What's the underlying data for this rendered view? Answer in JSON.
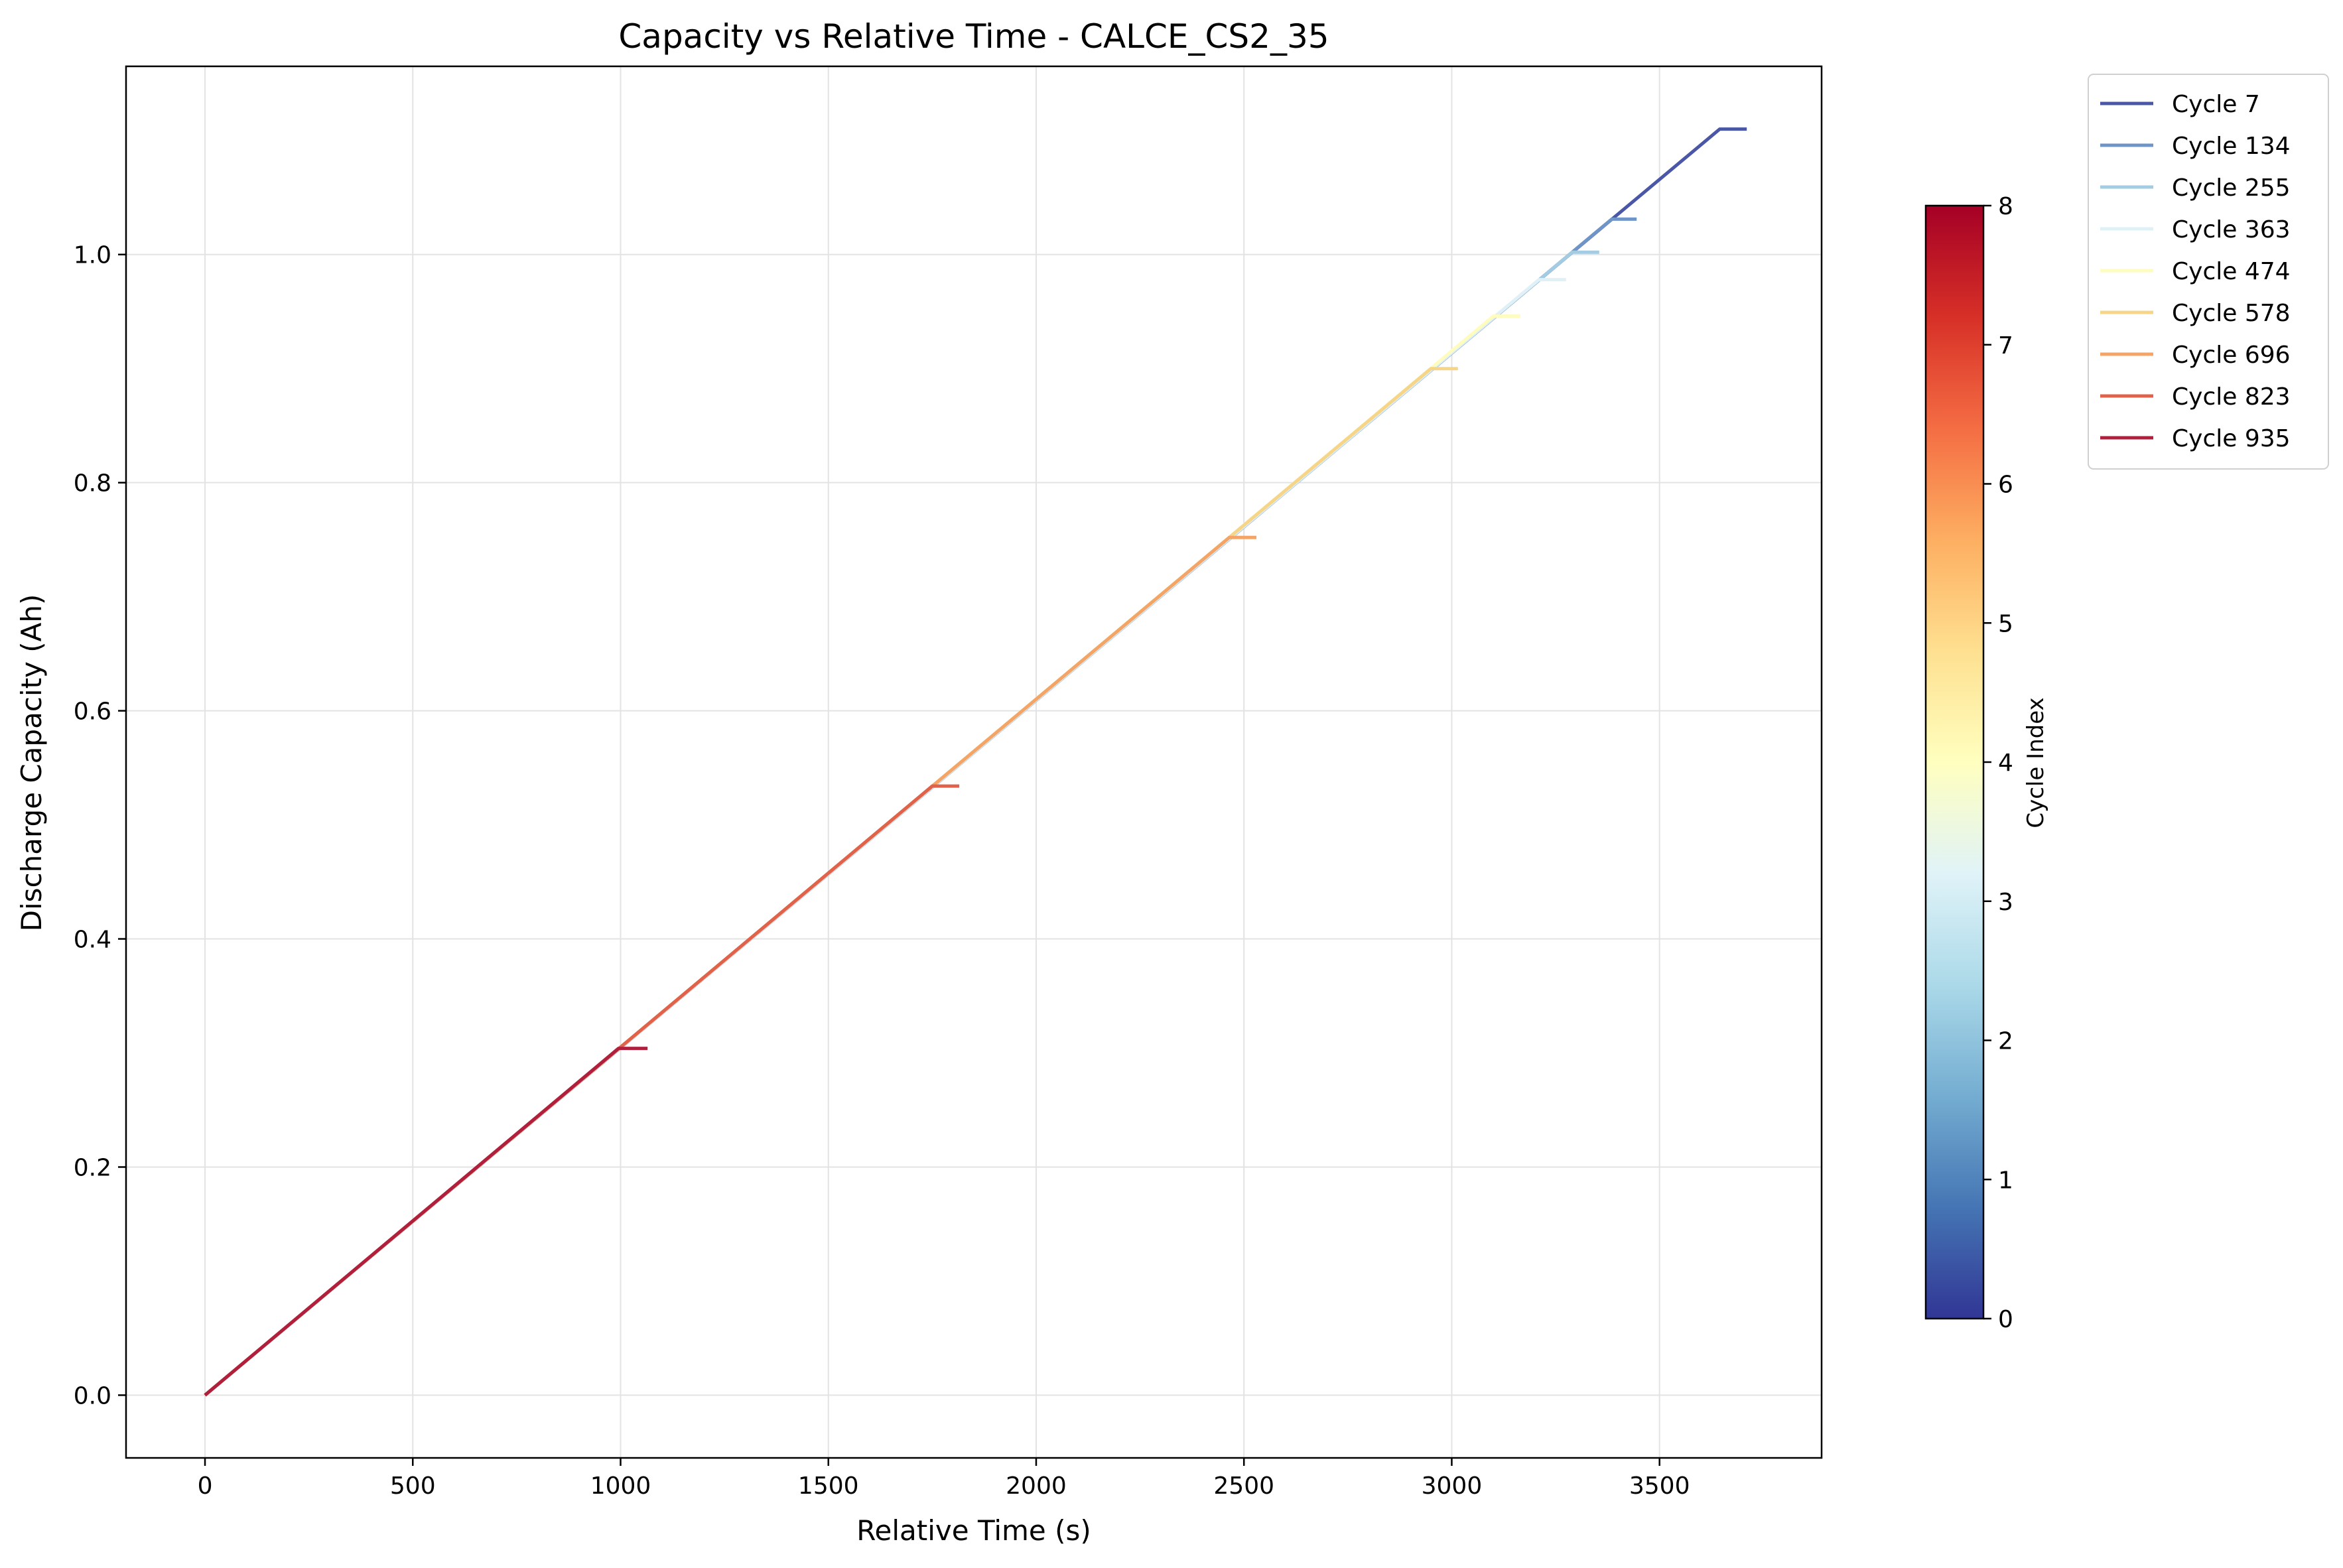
{
  "chart_data": {
    "type": "line",
    "title": "Capacity vs Relative Time - CALCE_CS2_35",
    "xlabel": "Relative Time (s)",
    "ylabel": "Discharge Capacity (Ah)",
    "xlim": [
      -190,
      3890
    ],
    "ylim": [
      -0.055,
      1.165
    ],
    "xticks": [
      0,
      500,
      1000,
      1500,
      2000,
      2500,
      3000,
      3500
    ],
    "xtick_labels": [
      "0",
      "500",
      "1000",
      "1500",
      "2000",
      "2500",
      "3000",
      "3500"
    ],
    "yticks": [
      0.0,
      0.2,
      0.4,
      0.6,
      0.8,
      1.0
    ],
    "ytick_labels": [
      "0.0",
      "0.2",
      "0.4",
      "0.6",
      "0.8",
      "1.0"
    ],
    "grid": true,
    "legend_position": "outside-right",
    "series": [
      {
        "name": "Cycle 7",
        "color": "#4a57a6",
        "points": [
          [
            0,
            0.0
          ],
          [
            3645,
            1.11
          ],
          [
            3710,
            1.11
          ]
        ]
      },
      {
        "name": "Cycle 134",
        "color": "#6f95c8",
        "points": [
          [
            0,
            0.0
          ],
          [
            3385,
            1.031
          ],
          [
            3445,
            1.031
          ]
        ]
      },
      {
        "name": "Cycle 255",
        "color": "#a3cce2",
        "points": [
          [
            0,
            0.0
          ],
          [
            3290,
            1.002
          ],
          [
            3355,
            1.002
          ]
        ]
      },
      {
        "name": "Cycle 363",
        "color": "#dff0f6",
        "points": [
          [
            0,
            0.0
          ],
          [
            3210,
            0.978
          ],
          [
            3275,
            0.978
          ]
        ]
      },
      {
        "name": "Cycle 474",
        "color": "#fefcbf",
        "points": [
          [
            0,
            0.0
          ],
          [
            3100,
            0.946
          ],
          [
            3165,
            0.946
          ]
        ]
      },
      {
        "name": "Cycle 578",
        "color": "#f6d589",
        "points": [
          [
            0,
            0.0
          ],
          [
            2950,
            0.9
          ],
          [
            3015,
            0.9
          ]
        ]
      },
      {
        "name": "Cycle 696",
        "color": "#f4a466",
        "points": [
          [
            0,
            0.0
          ],
          [
            2465,
            0.752
          ],
          [
            2530,
            0.752
          ]
        ]
      },
      {
        "name": "Cycle 823",
        "color": "#e0624a",
        "points": [
          [
            0,
            0.0
          ],
          [
            1750,
            0.534
          ],
          [
            1815,
            0.534
          ]
        ]
      },
      {
        "name": "Cycle 935",
        "color": "#b0203d",
        "points": [
          [
            0,
            0.0
          ],
          [
            995,
            0.304
          ],
          [
            1065,
            0.304
          ]
        ]
      }
    ],
    "colorbar": {
      "label": "Cycle Index",
      "range": [
        0,
        8
      ],
      "ticks": [
        0,
        1,
        2,
        3,
        4,
        5,
        6,
        7,
        8
      ],
      "tick_labels": [
        "0",
        "1",
        "2",
        "3",
        "4",
        "5",
        "6",
        "7",
        "8"
      ],
      "colormap": "RdYlBu_r",
      "stops": [
        "#313695",
        "#4575b4",
        "#74add1",
        "#abd9e9",
        "#e0f3f8",
        "#ffffbf",
        "#fee090",
        "#fdae61",
        "#f46d43",
        "#d73027",
        "#a50026"
      ]
    }
  }
}
